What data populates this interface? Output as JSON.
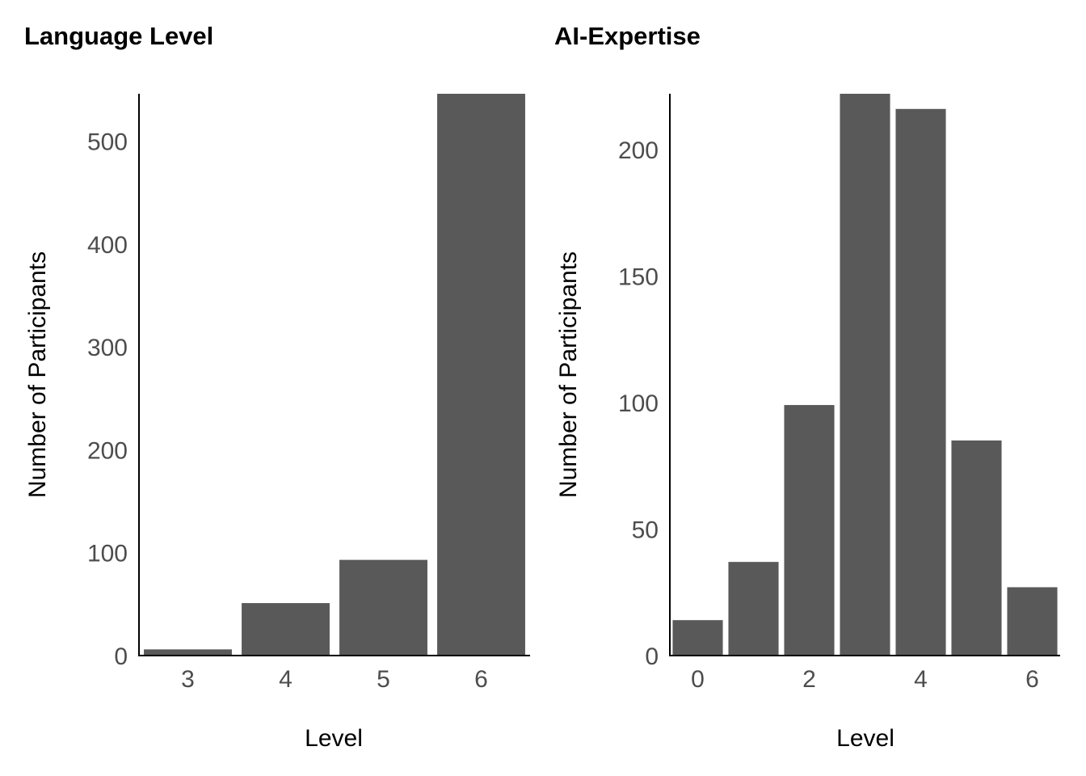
{
  "chart_data": [
    {
      "type": "bar",
      "title": "Language Level",
      "xlabel": "Level",
      "ylabel": "Number of Participants",
      "x": [
        3,
        4,
        5,
        6
      ],
      "values": [
        6,
        51,
        93,
        546
      ],
      "xlim": [
        2.5,
        6.5
      ],
      "xticks": [
        3,
        4,
        5,
        6
      ],
      "ylim": [
        0,
        546
      ],
      "yticks": [
        0,
        100,
        200,
        300,
        400,
        500
      ],
      "grid": false,
      "bar_color": "#595959"
    },
    {
      "type": "bar",
      "title": "AI-Expertise",
      "xlabel": "Level",
      "ylabel": "Number of Participants",
      "x": [
        0,
        1,
        2,
        3,
        4,
        5,
        6
      ],
      "values": [
        14,
        37,
        99,
        222,
        216,
        85,
        27
      ],
      "xlim": [
        -0.5,
        6.5
      ],
      "xticks": [
        0,
        2,
        4,
        6
      ],
      "ylim": [
        0,
        222
      ],
      "yticks": [
        0,
        50,
        100,
        150,
        200
      ],
      "grid": false,
      "bar_color": "#595959"
    }
  ]
}
